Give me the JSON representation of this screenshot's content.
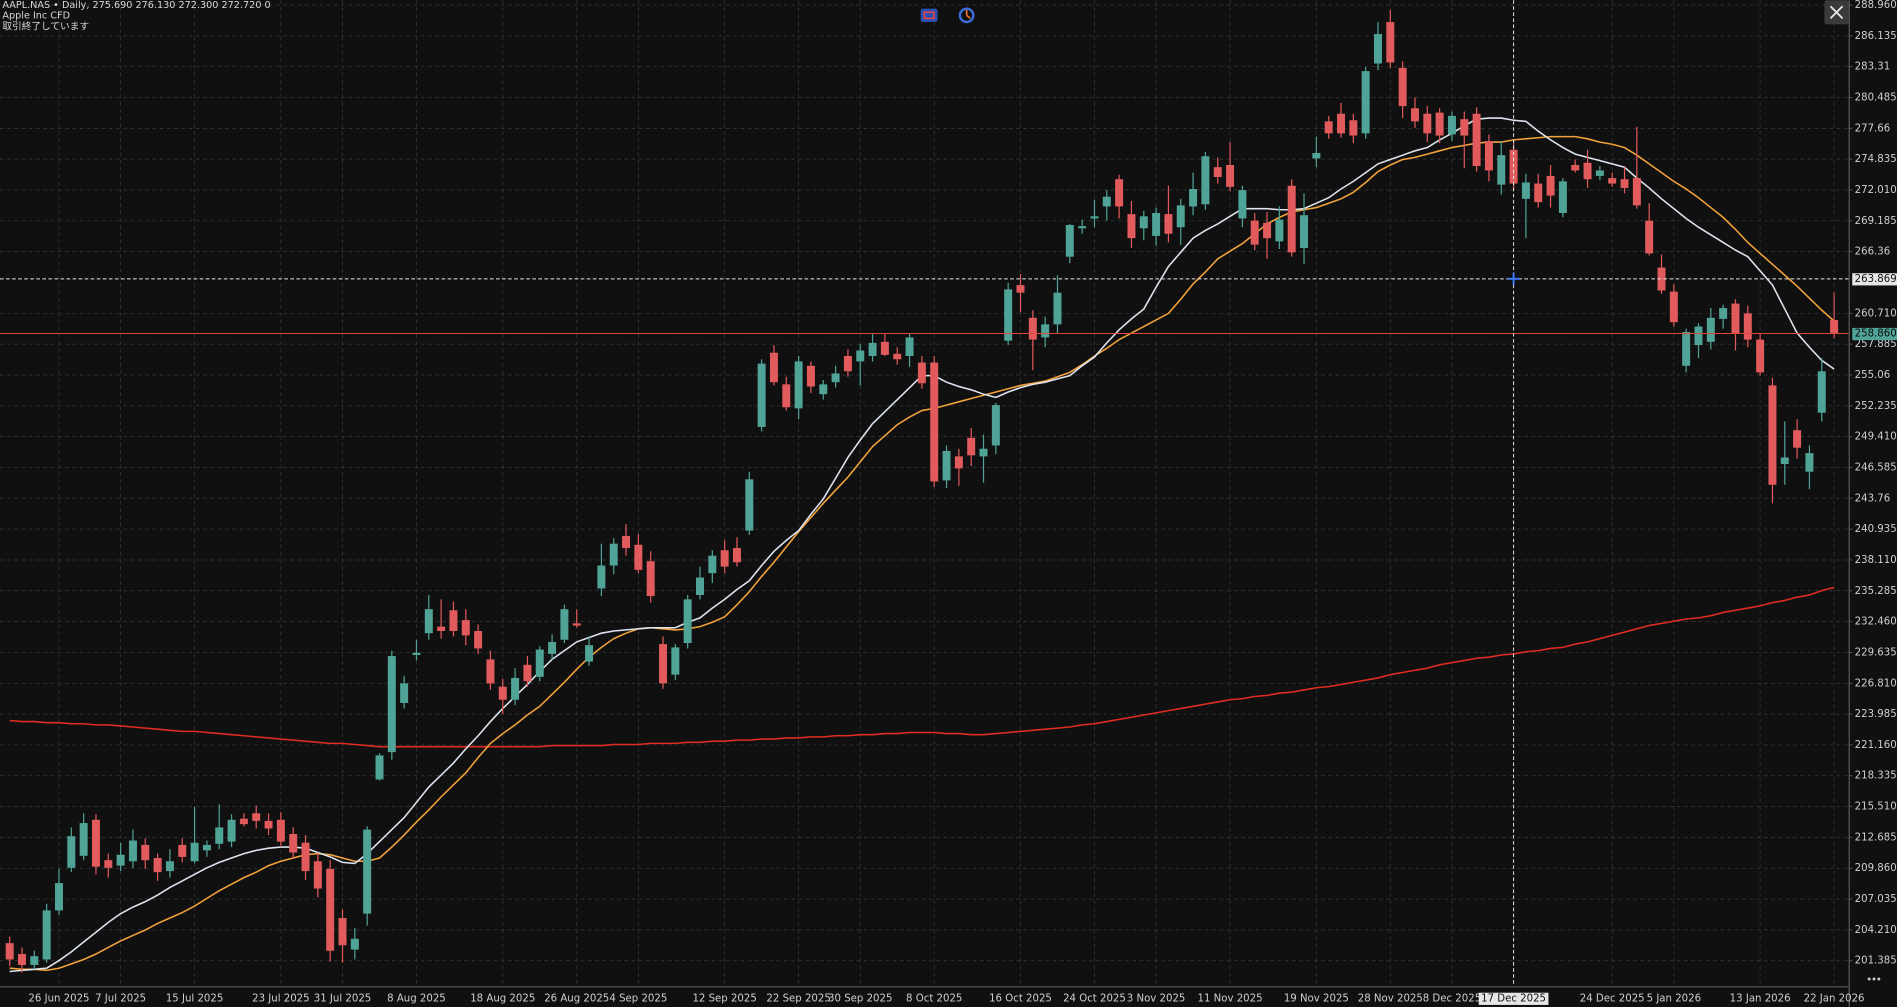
{
  "header": {
    "symbol_line": "AAPL.NAS • Daily, 275.690 276.130 272.300 272.720 0",
    "name": "Apple Inc CFD",
    "status": "取引終了しています"
  },
  "chart_data": {
    "type": "candlestick",
    "categories": [
      null,
      null,
      null,
      null,
      "26 Jun 2025",
      null,
      null,
      null,
      null,
      "7 Jul 2025",
      null,
      null,
      null,
      null,
      null,
      "15 Jul 2025",
      null,
      null,
      null,
      null,
      null,
      null,
      "23 Jul 2025",
      null,
      null,
      null,
      null,
      "31 Jul 2025",
      null,
      null,
      null,
      null,
      null,
      "8 Aug 2025",
      null,
      null,
      null,
      null,
      null,
      null,
      "18 Aug 2025",
      null,
      null,
      null,
      null,
      null,
      "26 Aug 2025",
      null,
      null,
      null,
      null,
      "4 Sep 2025",
      null,
      null,
      null,
      null,
      null,
      null,
      "12 Sep 2025",
      null,
      null,
      null,
      null,
      null,
      "22 Sep 2025",
      null,
      null,
      null,
      null,
      "30 Sep 2025",
      null,
      null,
      null,
      null,
      null,
      "8 Oct 2025",
      null,
      null,
      null,
      null,
      null,
      null,
      "16 Oct 2025",
      null,
      null,
      null,
      null,
      null,
      "24 Oct 2025",
      null,
      null,
      null,
      null,
      "3 Nov 2025",
      null,
      null,
      null,
      null,
      null,
      "11 Nov 2025",
      null,
      null,
      null,
      null,
      null,
      null,
      "19 Nov 2025",
      null,
      null,
      null,
      null,
      null,
      "28 Nov 2025",
      null,
      null,
      null,
      null,
      "8 Dec 2025",
      null,
      null,
      null,
      null,
      "17 Dec 2025",
      null,
      null,
      null,
      null,
      null,
      null,
      null,
      "24 Dec 2025",
      null,
      null,
      null,
      null,
      "5 Jan 2026",
      null,
      null,
      null,
      null,
      null,
      null,
      "13 Jan 2026",
      null,
      null,
      null,
      null,
      null,
      "22 Jan 2026"
    ],
    "open": [
      203.0,
      202.0,
      201.0,
      201.5,
      206.0,
      209.9,
      211.0,
      214.3,
      210.6,
      210.1,
      210.5,
      212.0,
      210.8,
      209.6,
      212.0,
      210.5,
      211.5,
      212.1,
      212.3,
      214.4,
      214.9,
      214.2,
      214.3,
      213.0,
      212.2,
      210.5,
      209.8,
      205.3,
      202.4,
      205.7,
      218.0,
      220.5,
      225.0,
      229.4,
      231.4,
      232.0,
      233.5,
      232.6,
      231.6,
      229.0,
      226.5,
      225.3,
      228.5,
      227.4,
      229.5,
      230.8,
      232.3,
      228.8,
      235.5,
      237.6,
      240.3,
      239.5,
      238.0,
      230.4,
      227.6,
      230.5,
      234.9,
      236.9,
      239.0,
      239.2,
      240.8,
      250.3,
      257.1,
      254.2,
      252.0,
      255.9,
      253.3,
      254.4,
      256.8,
      256.3,
      256.8,
      258.1,
      257.0,
      256.8,
      256.2,
      256.2,
      245.4,
      247.6,
      249.3,
      247.6,
      248.6,
      258.2,
      263.3,
      260.3,
      258.5,
      259.7,
      265.9,
      268.5,
      269.4,
      270.5,
      273.0,
      269.8,
      268.5,
      267.8,
      269.8,
      268.6,
      270.5,
      270.7,
      274.1,
      274.3,
      269.4,
      269.2,
      269.0,
      267.3,
      272.4,
      266.7,
      274.9,
      278.3,
      279.0,
      278.4,
      277.2,
      283.6,
      287.4,
      283.2,
      279.5,
      279.0,
      279.1,
      277.1,
      278.5,
      279.0,
      276.5,
      272.5,
      275.7,
      271.2,
      272.6,
      273.3,
      269.9,
      274.3,
      274.5,
      273.3,
      273.1,
      273.0,
      273.1,
      269.2,
      264.9,
      262.7,
      255.9,
      257.8,
      258.1,
      260.2,
      261.6,
      260.7,
      258.3,
      254.1,
      246.9,
      250.0,
      246.2,
      251.6,
      260.1
    ],
    "high": [
      203.6,
      202.6,
      202.3,
      206.6,
      209.8,
      213.6,
      214.9,
      214.8,
      211.2,
      212.2,
      213.4,
      212.6,
      211.2,
      211.6,
      212.6,
      215.5,
      212.4,
      215.7,
      214.8,
      214.9,
      215.6,
      214.9,
      215.0,
      213.6,
      212.9,
      211.3,
      210.6,
      206.1,
      204.4,
      213.7,
      220.4,
      229.8,
      227.5,
      230.8,
      234.9,
      234.5,
      234.3,
      233.6,
      232.2,
      229.8,
      227.2,
      228.2,
      229.3,
      230.2,
      231.3,
      234.0,
      233.6,
      231.1,
      239.6,
      240.1,
      241.4,
      240.5,
      238.9,
      231.1,
      230.4,
      234.9,
      237.5,
      239.0,
      239.9,
      240.2,
      246.2,
      256.5,
      257.8,
      254.9,
      256.8,
      256.3,
      254.6,
      255.9,
      257.4,
      257.9,
      258.8,
      258.9,
      257.6,
      258.9,
      256.8,
      256.8,
      248.6,
      248.3,
      250.2,
      249.6,
      252.5,
      263.5,
      264.3,
      261.0,
      260.4,
      264.2,
      268.9,
      269.3,
      271.1,
      272.0,
      273.4,
      271.0,
      270.1,
      270.4,
      272.4,
      271.2,
      273.6,
      275.5,
      275.0,
      276.4,
      272.4,
      269.9,
      270.0,
      270.5,
      273.0,
      271.7,
      276.9,
      278.8,
      280.0,
      279.0,
      283.3,
      287.4,
      288.5,
      283.8,
      280.5,
      279.7,
      279.5,
      279.2,
      279.2,
      279.6,
      277.1,
      276.5,
      276.6,
      273.5,
      273.5,
      274.3,
      273.1,
      274.8,
      275.7,
      274.2,
      273.6,
      274.1,
      277.8,
      270.8,
      266.1,
      263.4,
      259.3,
      259.8,
      261.2,
      261.5,
      262.0,
      261.4,
      258.9,
      254.8,
      250.8,
      251.0,
      248.6,
      256.6,
      262.6
    ],
    "low": [
      200.9,
      200.3,
      200.6,
      201.2,
      205.6,
      209.5,
      210.6,
      209.3,
      209.0,
      209.6,
      209.9,
      209.8,
      208.7,
      209.0,
      210.4,
      210.3,
      210.9,
      211.6,
      211.8,
      213.7,
      213.5,
      212.9,
      211.8,
      210.7,
      208.8,
      207.2,
      201.3,
      201.2,
      201.5,
      204.6,
      217.9,
      219.8,
      224.5,
      228.9,
      230.8,
      230.9,
      231.1,
      230.3,
      229.5,
      226.2,
      224.0,
      224.8,
      226.5,
      227.0,
      229.0,
      230.5,
      231.9,
      228.4,
      234.8,
      236.8,
      238.5,
      236.9,
      234.2,
      226.3,
      227.1,
      230.0,
      234.5,
      236.0,
      236.9,
      237.5,
      240.4,
      249.9,
      254.1,
      251.8,
      251.0,
      253.4,
      252.8,
      253.9,
      254.9,
      254.1,
      256.3,
      256.8,
      256.0,
      255.8,
      253.8,
      244.8,
      244.7,
      244.9,
      246.7,
      245.2,
      247.8,
      257.8,
      260.8,
      255.5,
      257.6,
      258.9,
      265.3,
      268.0,
      268.6,
      269.2,
      269.4,
      266.7,
      267.4,
      266.9,
      267.2,
      267.0,
      269.7,
      270.2,
      272.6,
      271.9,
      268.6,
      266.5,
      265.7,
      266.6,
      265.9,
      265.2,
      274.1,
      276.7,
      276.8,
      276.3,
      276.7,
      283.0,
      283.2,
      278.6,
      277.7,
      276.4,
      276.3,
      276.5,
      274.0,
      273.7,
      272.8,
      271.6,
      272.0,
      267.6,
      270.4,
      270.4,
      269.5,
      273.6,
      272.2,
      272.9,
      272.3,
      271.7,
      270.3,
      266.0,
      262.5,
      259.5,
      255.3,
      256.6,
      257.4,
      259.3,
      257.3,
      257.6,
      255.0,
      243.3,
      245.0,
      247.4,
      244.6,
      250.8,
      258.4
    ],
    "close": [
      201.5,
      201.0,
      201.8,
      206.0,
      208.5,
      212.8,
      214.0,
      210.0,
      209.9,
      211.1,
      212.4,
      210.6,
      209.5,
      210.5,
      210.9,
      212.2,
      212.0,
      213.6,
      214.3,
      213.9,
      214.2,
      213.5,
      212.3,
      211.3,
      209.6,
      208.0,
      202.3,
      202.8,
      203.4,
      213.4,
      220.2,
      229.3,
      226.8,
      229.6,
      233.6,
      231.6,
      231.6,
      231.2,
      230.0,
      226.8,
      225.3,
      227.3,
      227.0,
      229.9,
      230.6,
      233.6,
      232.1,
      230.3,
      237.6,
      239.6,
      239.2,
      237.2,
      234.8,
      226.8,
      230.1,
      234.5,
      236.5,
      238.5,
      237.5,
      237.9,
      245.5,
      256.1,
      254.4,
      252.1,
      256.3,
      254.0,
      254.2,
      255.2,
      255.4,
      257.3,
      258.0,
      256.9,
      256.5,
      258.5,
      254.3,
      245.3,
      248.1,
      246.5,
      247.7,
      248.3,
      252.3,
      262.9,
      262.6,
      258.3,
      259.7,
      262.6,
      268.8,
      268.7,
      269.6,
      271.4,
      270.5,
      267.6,
      269.6,
      269.9,
      268.0,
      270.6,
      272.1,
      275.1,
      273.2,
      272.3,
      272.0,
      267.0,
      267.6,
      269.3,
      266.3,
      269.7,
      275.4,
      277.2,
      277.2,
      277.0,
      282.9,
      286.3,
      283.7,
      279.7,
      278.3,
      277.2,
      277.0,
      278.8,
      277.0,
      274.2,
      273.8,
      275.2,
      272.6,
      272.7,
      270.9,
      271.5,
      272.8,
      273.8,
      273.0,
      273.8,
      272.6,
      272.2,
      270.6,
      266.2,
      262.8,
      259.9,
      259.0,
      259.5,
      260.3,
      261.2,
      258.9,
      258.3,
      255.3,
      245.0,
      247.5,
      248.4,
      247.9,
      255.4,
      258.86
    ],
    "up_color": "#4fa497",
    "down_color": "#e15a5c",
    "series": [
      {
        "color": "#e02c22",
        "values": [
          223.4,
          223.3,
          223.3,
          223.2,
          223.2,
          223.1,
          223.1,
          223.0,
          223.0,
          222.9,
          222.8,
          222.7,
          222.6,
          222.5,
          222.4,
          222.4,
          222.3,
          222.2,
          222.1,
          222.0,
          221.9,
          221.8,
          221.7,
          221.6,
          221.5,
          221.4,
          221.3,
          221.3,
          221.2,
          221.1,
          221.0,
          221.0,
          221.0,
          221.0,
          221.0,
          221.0,
          221.0,
          221.0,
          221.0,
          221.0,
          221.0,
          221.0,
          221.0,
          221.0,
          221.1,
          221.1,
          221.1,
          221.1,
          221.1,
          221.2,
          221.2,
          221.2,
          221.3,
          221.3,
          221.3,
          221.4,
          221.4,
          221.5,
          221.5,
          221.6,
          221.6,
          221.7,
          221.7,
          221.8,
          221.8,
          221.9,
          221.9,
          222.0,
          222.0,
          222.1,
          222.1,
          222.2,
          222.2,
          222.3,
          222.3,
          222.3,
          222.2,
          222.2,
          222.1,
          222.1,
          222.2,
          222.3,
          222.4,
          222.5,
          222.6,
          222.7,
          222.8,
          223.0,
          223.1,
          223.3,
          223.5,
          223.7,
          223.9,
          224.1,
          224.3,
          224.5,
          224.7,
          224.9,
          225.1,
          225.3,
          225.4,
          225.6,
          225.7,
          225.9,
          226.0,
          226.2,
          226.4,
          226.5,
          226.7,
          226.9,
          227.1,
          227.3,
          227.6,
          227.8,
          228.0,
          228.2,
          228.5,
          228.7,
          228.9,
          229.1,
          229.2,
          229.4,
          229.5,
          229.7,
          229.8,
          230.0,
          230.1,
          230.4,
          230.6,
          230.9,
          231.2,
          231.5,
          231.8,
          232.1,
          232.3,
          232.5,
          232.7,
          232.8,
          233.0,
          233.3,
          233.5,
          233.7,
          233.9,
          234.2,
          234.4,
          234.7,
          234.9,
          235.3,
          235.6
        ]
      },
      {
        "color": "#f2a23a",
        "values": [
          200.7,
          200.6,
          200.6,
          200.5,
          200.7,
          201.1,
          201.5,
          202.0,
          202.6,
          203.2,
          203.7,
          204.2,
          204.8,
          205.3,
          205.8,
          206.4,
          207.1,
          207.8,
          208.4,
          209.0,
          209.5,
          210.1,
          210.5,
          210.8,
          211.1,
          211.2,
          211.1,
          210.8,
          210.5,
          210.5,
          210.8,
          211.8,
          212.9,
          214.1,
          215.2,
          216.4,
          217.5,
          218.6,
          220.0,
          221.3,
          222.2,
          223.0,
          223.9,
          224.7,
          225.8,
          226.9,
          228.1,
          229.2,
          230.1,
          230.9,
          231.4,
          231.8,
          231.9,
          231.8,
          231.7,
          231.8,
          232.0,
          232.4,
          232.9,
          234.0,
          235.2,
          236.6,
          237.9,
          239.3,
          240.7,
          242.0,
          243.3,
          244.5,
          245.7,
          247.1,
          248.5,
          249.5,
          250.5,
          251.2,
          251.8,
          252.0,
          252.3,
          252.6,
          252.9,
          253.2,
          253.5,
          253.8,
          254.1,
          254.3,
          254.5,
          254.9,
          255.3,
          256.0,
          256.8,
          257.5,
          258.3,
          258.9,
          259.5,
          260.1,
          260.7,
          262.0,
          263.4,
          264.5,
          265.7,
          266.4,
          267.1,
          268.0,
          268.9,
          269.5,
          270.0,
          270.2,
          270.4,
          270.8,
          271.2,
          271.8,
          272.7,
          273.7,
          274.3,
          274.8,
          275.0,
          275.3,
          275.6,
          275.9,
          276.1,
          276.3,
          276.4,
          276.4,
          276.6,
          276.7,
          276.8,
          276.9,
          276.9,
          276.9,
          276.7,
          276.4,
          276.2,
          275.9,
          275.2,
          274.4,
          273.6,
          272.8,
          272.1,
          271.3,
          270.4,
          269.5,
          268.4,
          267.2,
          266.2,
          265.2,
          264.2,
          263.2,
          262.1,
          261.0,
          260.0
        ]
      },
      {
        "color": "#dde4ef",
        "values": [
          200.4,
          200.5,
          200.6,
          200.7,
          201.4,
          202.2,
          203.1,
          204.0,
          204.9,
          205.7,
          206.3,
          206.8,
          207.4,
          208.1,
          208.7,
          209.3,
          209.9,
          210.4,
          210.8,
          211.2,
          211.5,
          211.7,
          211.8,
          211.8,
          211.7,
          211.3,
          210.9,
          210.4,
          210.3,
          211.2,
          212.3,
          213.4,
          214.5,
          215.9,
          217.3,
          218.4,
          219.5,
          220.8,
          222.0,
          223.3,
          224.5,
          225.6,
          226.7,
          227.9,
          229.0,
          229.8,
          230.6,
          231.0,
          231.4,
          231.6,
          231.7,
          231.8,
          231.9,
          231.9,
          231.9,
          232.4,
          232.8,
          233.7,
          234.5,
          235.4,
          236.2,
          237.6,
          238.9,
          239.9,
          240.8,
          242.3,
          243.7,
          245.6,
          247.5,
          249.1,
          250.6,
          251.7,
          252.8,
          253.9,
          255.0,
          255.0,
          254.4,
          254.0,
          253.7,
          253.3,
          253.0,
          253.5,
          253.9,
          254.2,
          254.4,
          254.7,
          255.0,
          255.9,
          256.7,
          258.0,
          259.2,
          260.2,
          261.1,
          263.1,
          265.0,
          266.3,
          267.6,
          268.3,
          268.9,
          269.6,
          270.3,
          270.3,
          270.3,
          270.2,
          270.2,
          270.3,
          270.8,
          271.3,
          272.1,
          272.8,
          273.6,
          274.4,
          274.8,
          275.2,
          275.6,
          275.9,
          276.6,
          277.2,
          277.9,
          278.5,
          278.6,
          278.6,
          278.4,
          278.3,
          277.4,
          276.6,
          275.9,
          275.3,
          275.0,
          274.7,
          274.4,
          274.1,
          273.1,
          272.2,
          271.2,
          270.3,
          269.4,
          268.6,
          267.9,
          267.2,
          266.5,
          265.9,
          264.6,
          263.3,
          261.1,
          258.9,
          257.6,
          256.4,
          255.6
        ]
      }
    ],
    "ylim": [
      199.05,
      289.4
    ],
    "yticks": [
      {
        "value": 288.96,
        "label": "288.960"
      },
      286.135,
      283.31,
      280.485,
      277.66,
      274.835,
      {
        "value": 272.01,
        "label": "272.010"
      },
      269.185,
      266.36,
      {
        "value": 260.71,
        "label": "260.710"
      },
      257.885,
      255.06,
      252.235,
      {
        "value": 249.41,
        "label": "249.410"
      },
      246.585,
      243.76,
      240.935,
      {
        "value": 238.11,
        "label": "238.110"
      },
      235.285,
      {
        "value": 232.46,
        "label": "232.460"
      },
      229.635,
      {
        "value": 226.81,
        "label": "226.810"
      },
      223.985,
      {
        "value": 221.16,
        "label": "221.160"
      },
      218.335,
      {
        "value": 215.51,
        "label": "215.510"
      },
      212.685,
      {
        "value": 209.86,
        "label": "209.860"
      },
      207.035,
      {
        "value": 204.21,
        "label": "204.210"
      },
      201.385
    ],
    "grid": true,
    "last_price": {
      "value": 258.86,
      "label": "258.860"
    },
    "crosshair": {
      "price": 263.869,
      "category": "17 Dec 2025"
    }
  }
}
